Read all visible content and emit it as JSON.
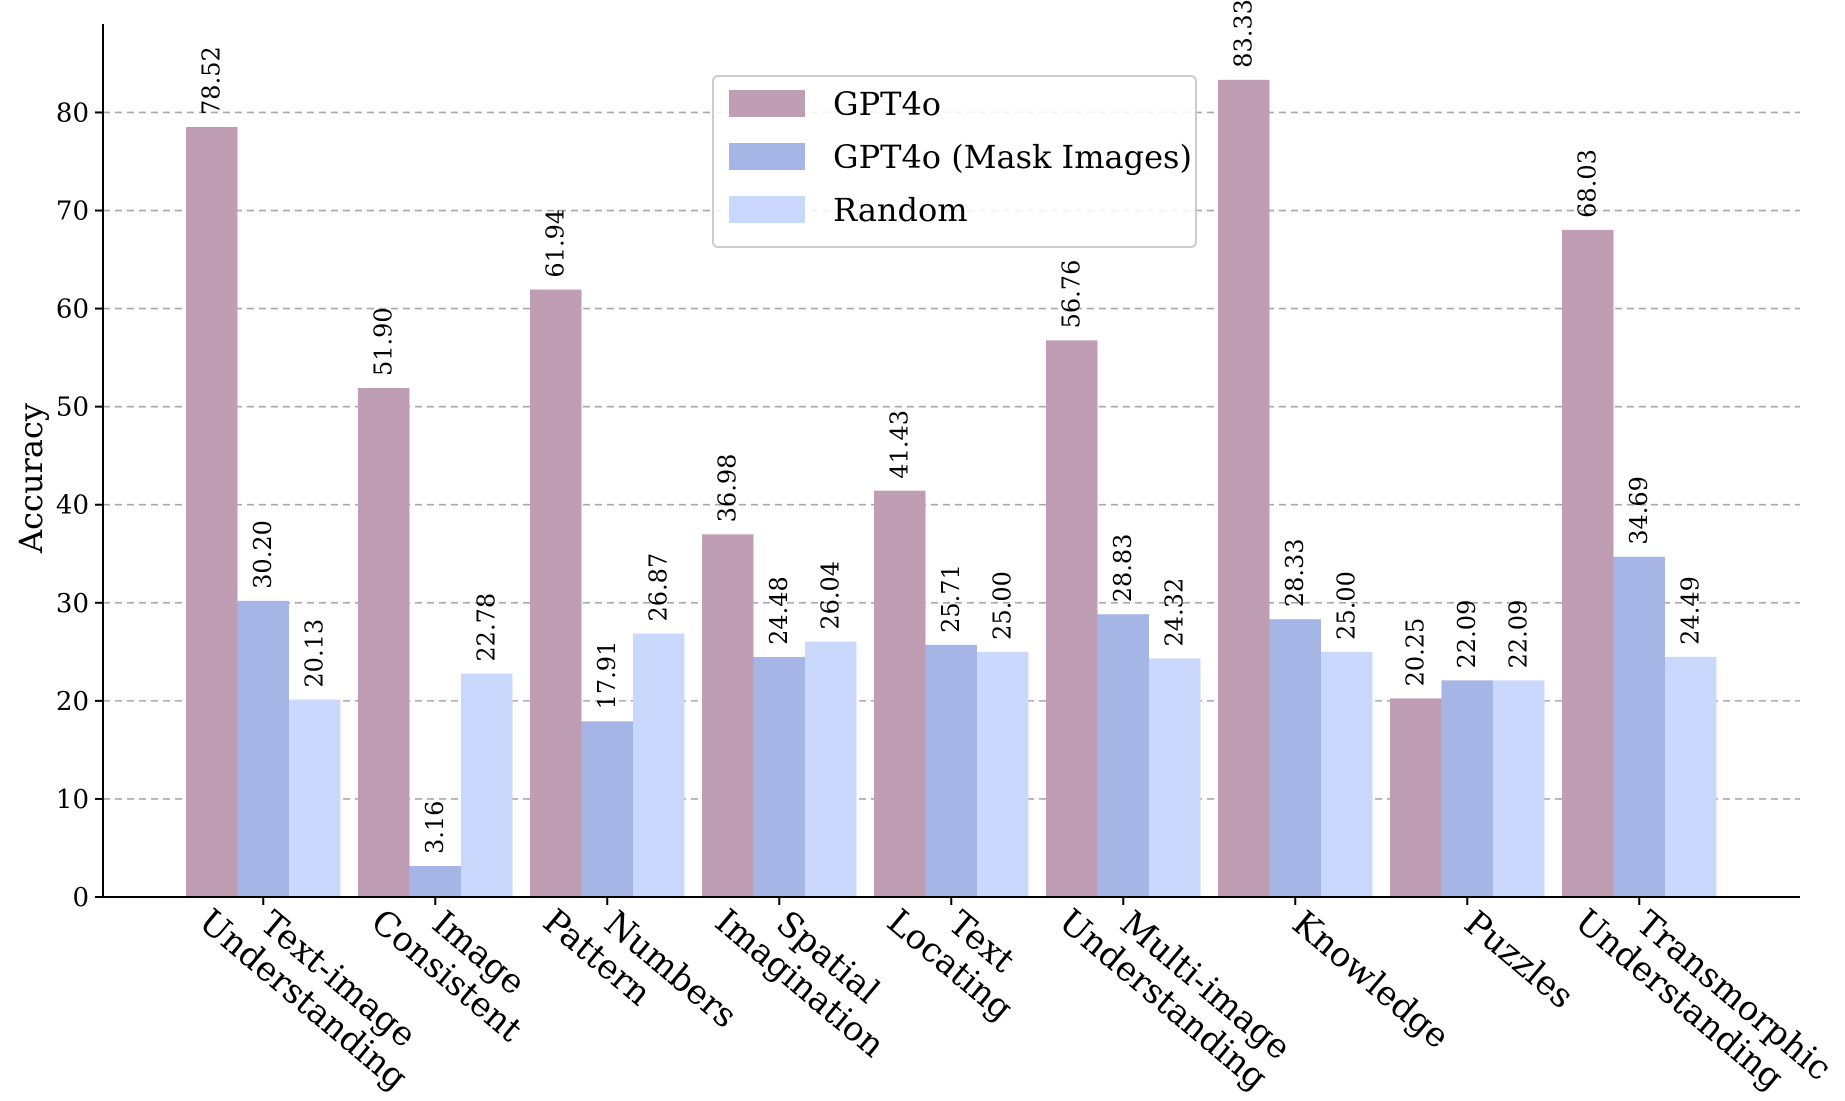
{
  "chart_data": {
    "type": "bar",
    "title": "",
    "xlabel": "",
    "ylabel": "Accuracy",
    "ylim": [
      0,
      88
    ],
    "yticks": [
      0,
      10,
      20,
      30,
      40,
      50,
      60,
      70,
      80
    ],
    "grid": "horizontal dashed",
    "legend_position": "top-center",
    "categories": [
      [
        "Text-image",
        "Understanding"
      ],
      [
        "Image",
        "Consistent"
      ],
      [
        "Numbers",
        "Pattern"
      ],
      [
        "Spatial",
        "Imagination"
      ],
      [
        "Text",
        "Locating"
      ],
      [
        "Multi-image",
        "Understanding"
      ],
      [
        "Knowledge"
      ],
      [
        "Puzzles"
      ],
      [
        "Transmorphic",
        "Understanding"
      ]
    ],
    "series": [
      {
        "name": "GPT4o",
        "color": "#bf9db2",
        "values": [
          78.52,
          51.9,
          61.94,
          36.98,
          41.43,
          56.76,
          83.33,
          20.25,
          68.03
        ]
      },
      {
        "name": "GPT4o (Mask Images)",
        "color": "#a4b5e6",
        "values": [
          30.2,
          3.16,
          17.91,
          24.48,
          25.71,
          28.83,
          28.33,
          22.09,
          34.69
        ]
      },
      {
        "name": "Random",
        "color": "#c9d8fc",
        "values": [
          20.13,
          22.78,
          26.87,
          26.04,
          25.0,
          24.32,
          25.0,
          22.09,
          24.49
        ]
      }
    ]
  }
}
